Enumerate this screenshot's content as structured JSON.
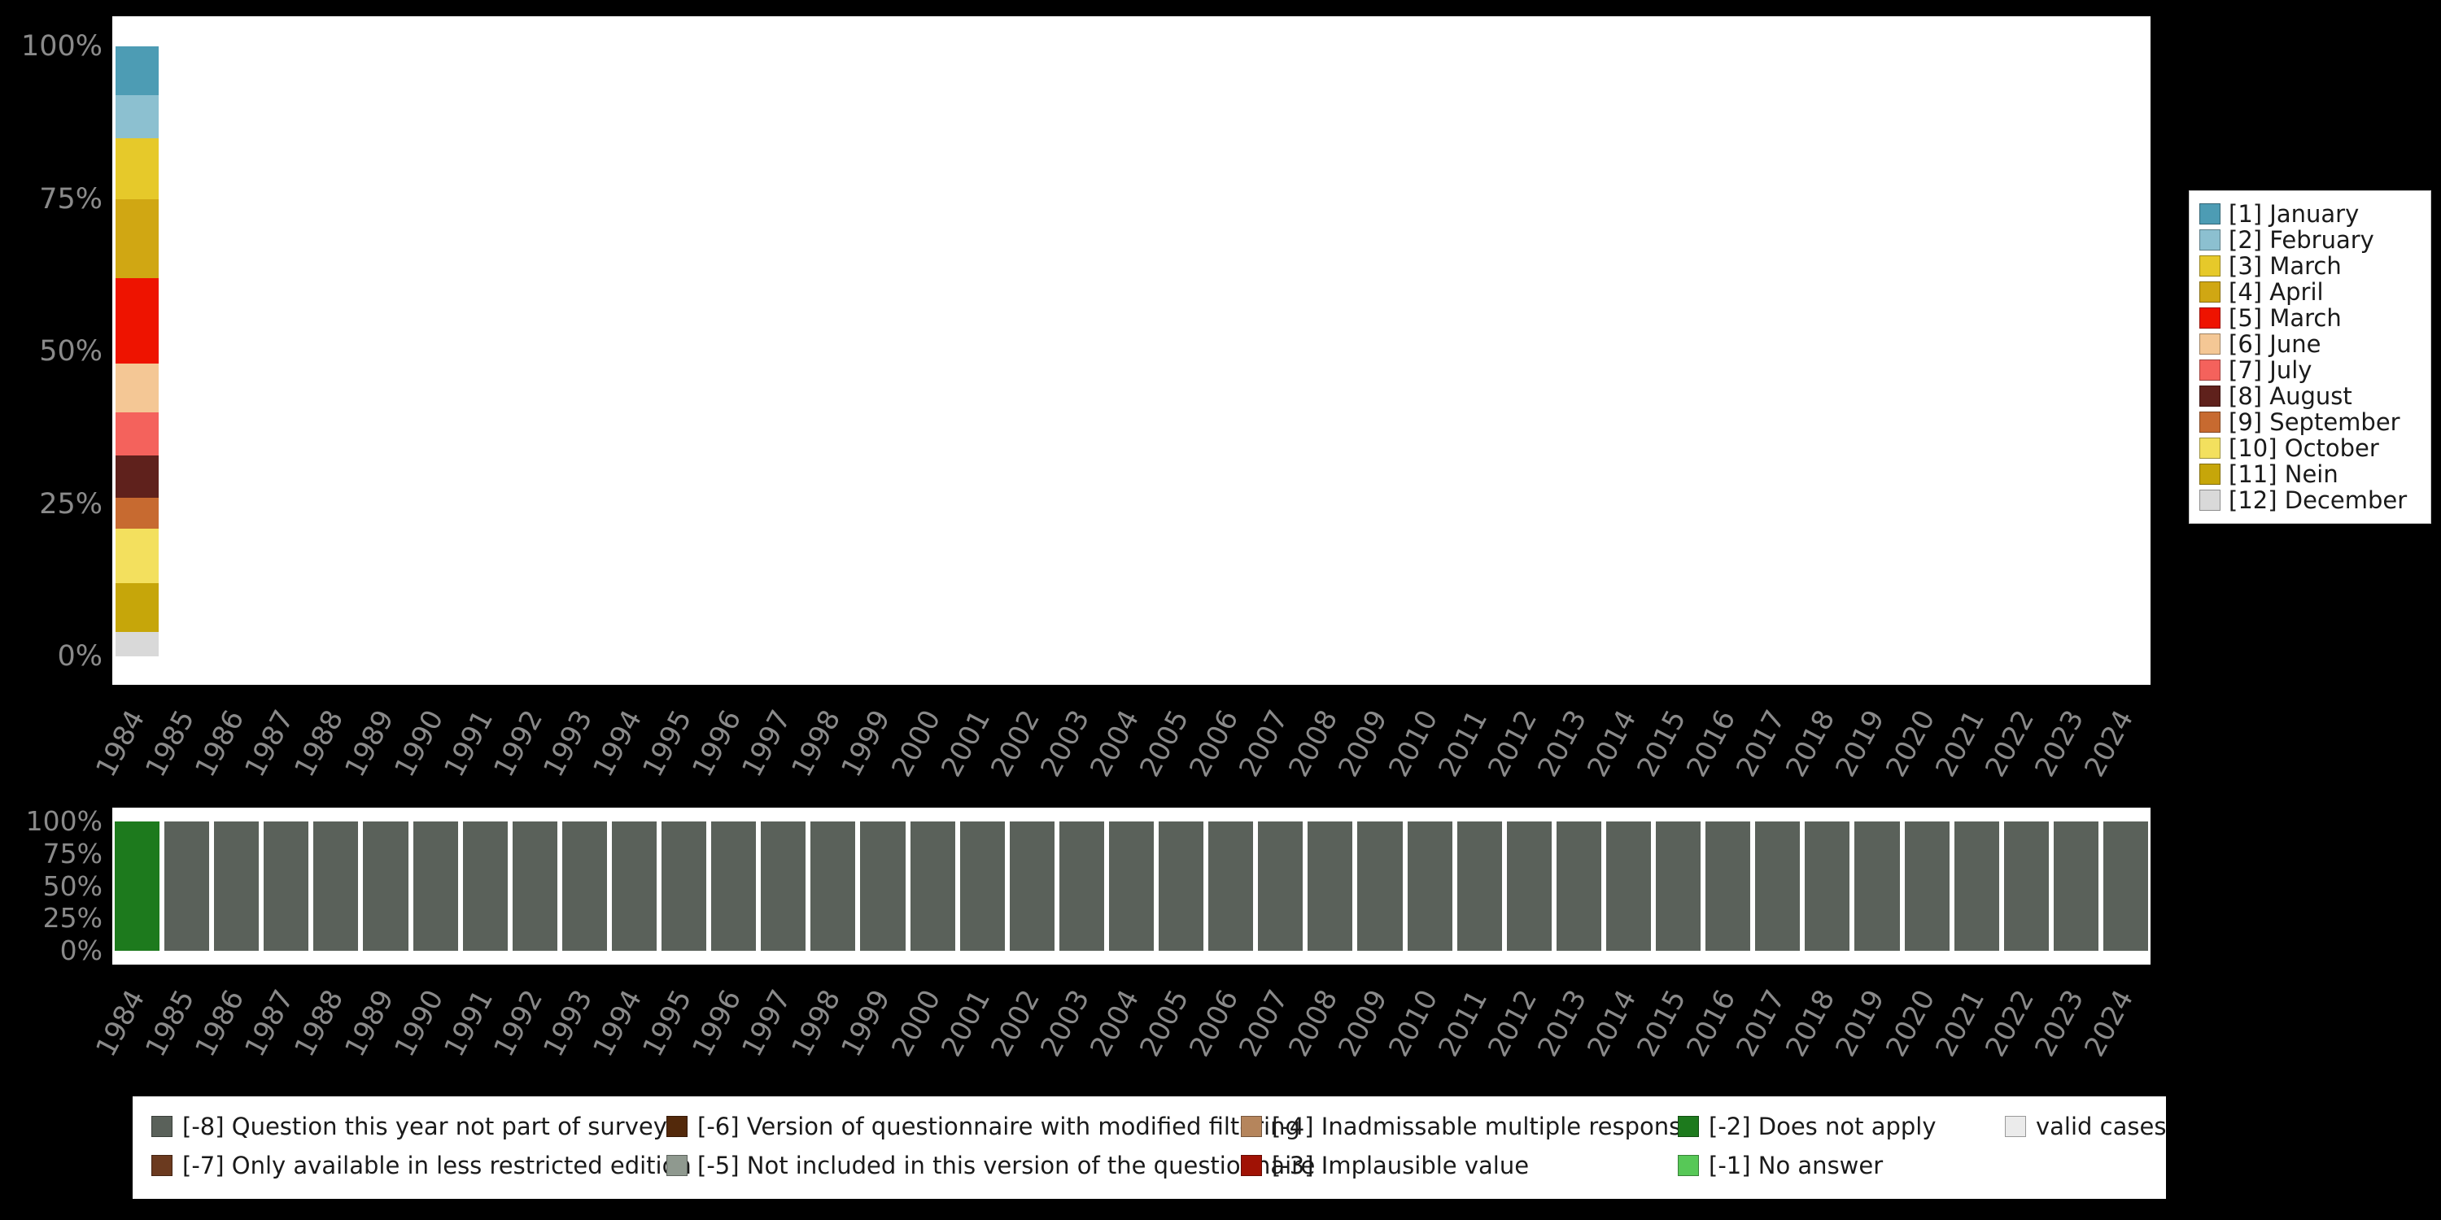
{
  "colors": {
    "background": "#000000",
    "plot_background": "#ffffff",
    "axis_text": "#8a8a8a",
    "legend_text": "#1a1a1a"
  },
  "years": [
    "1984",
    "1985",
    "1986",
    "1987",
    "1988",
    "1989",
    "1990",
    "1991",
    "1992",
    "1993",
    "1994",
    "1995",
    "1996",
    "1997",
    "1998",
    "1999",
    "2000",
    "2001",
    "2002",
    "2003",
    "2004",
    "2005",
    "2006",
    "2007",
    "2008",
    "2009",
    "2010",
    "2011",
    "2012",
    "2013",
    "2014",
    "2015",
    "2016",
    "2017",
    "2018",
    "2019",
    "2020",
    "2021",
    "2022",
    "2023",
    "2024"
  ],
  "top_chart": {
    "y_ticks": [
      "100%",
      "75%",
      "50%",
      "25%",
      "0%"
    ],
    "data_year": "1984",
    "segments": [
      {
        "label": "[1] January",
        "color": "#4d9cb4",
        "value": 8
      },
      {
        "label": "[2] February",
        "color": "#8cc0d0",
        "value": 7
      },
      {
        "label": "[3] March",
        "color": "#e6c92a",
        "value": 10
      },
      {
        "label": "[4] April",
        "color": "#d0a713",
        "value": 13
      },
      {
        "label": "[5] March",
        "color": "#ee1300",
        "value": 14
      },
      {
        "label": "[6] June",
        "color": "#f4c795",
        "value": 8
      },
      {
        "label": "[7] July",
        "color": "#f4625c",
        "value": 7
      },
      {
        "label": "[8] August",
        "color": "#5f211c",
        "value": 7
      },
      {
        "label": "[9] September",
        "color": "#c76a30",
        "value": 5
      },
      {
        "label": "[10] October",
        "color": "#f3e05e",
        "value": 9
      },
      {
        "label": "[11] Nein",
        "color": "#c6a60a",
        "value": 8
      },
      {
        "label": "[12] December",
        "color": "#d9d9d9",
        "value": 4
      }
    ]
  },
  "bottom_chart": {
    "y_ticks": [
      "100%",
      "75%",
      "50%",
      "25%",
      "0%"
    ],
    "highlight_year": "1984",
    "highlight_color": "#1d7a1d",
    "default_color": "#5a615a"
  },
  "missing_legend": {
    "rows": [
      [
        {
          "label": "[-8] Question this year not part of survey",
          "color": "#5a615a"
        },
        {
          "label": "[-6] Version of questionnaire with modified filtering",
          "color": "#53290b"
        },
        {
          "label": "[-4] Inadmissable multiple response",
          "color": "#b5855c"
        },
        {
          "label": "[-2] Does not apply",
          "color": "#1d7a1d"
        },
        {
          "label": "valid cases",
          "color": "#ebebeb"
        }
      ],
      [
        {
          "label": "[-7] Only available in less restricted edition",
          "color": "#6b3a1f"
        },
        {
          "label": "[-5] Not included in this version of the questionnaire",
          "color": "#8f998f"
        },
        {
          "label": "[-3] Implausible value",
          "color": "#a01205"
        },
        {
          "label": "[-1] No answer",
          "color": "#57c857"
        }
      ]
    ]
  },
  "chart_data": [
    {
      "type": "bar",
      "stacked": true,
      "unit": "percent",
      "title": "",
      "xlabel": "",
      "ylabel": "",
      "ylim": [
        0,
        100
      ],
      "y_tick_labels": [
        "100%",
        "75%",
        "50%",
        "25%",
        "0%"
      ],
      "grid": false,
      "legend_position": "right",
      "categories": [
        "1984",
        "1985",
        "1986",
        "1987",
        "1988",
        "1989",
        "1990",
        "1991",
        "1992",
        "1993",
        "1994",
        "1995",
        "1996",
        "1997",
        "1998",
        "1999",
        "2000",
        "2001",
        "2002",
        "2003",
        "2004",
        "2005",
        "2006",
        "2007",
        "2008",
        "2009",
        "2010",
        "2011",
        "2012",
        "2013",
        "2014",
        "2015",
        "2016",
        "2017",
        "2018",
        "2019",
        "2020",
        "2021",
        "2022",
        "2023",
        "2024"
      ],
      "note": "Percent-stacked distribution; only 1984 has a bar, all years 1985-2024 are empty (0%).",
      "series": [
        {
          "name": "[1] January",
          "color": "#4d9cb4",
          "values_pct": {
            "1984": 8
          }
        },
        {
          "name": "[2] February",
          "color": "#8cc0d0",
          "values_pct": {
            "1984": 7
          }
        },
        {
          "name": "[3] March",
          "color": "#e6c92a",
          "values_pct": {
            "1984": 10
          }
        },
        {
          "name": "[4] April",
          "color": "#d0a713",
          "values_pct": {
            "1984": 13
          }
        },
        {
          "name": "[5] March",
          "color": "#ee1300",
          "values_pct": {
            "1984": 14
          }
        },
        {
          "name": "[6] June",
          "color": "#f4c795",
          "values_pct": {
            "1984": 8
          }
        },
        {
          "name": "[7] July",
          "color": "#f4625c",
          "values_pct": {
            "1984": 7
          }
        },
        {
          "name": "[8] August",
          "color": "#5f211c",
          "values_pct": {
            "1984": 7
          }
        },
        {
          "name": "[9] September",
          "color": "#c76a30",
          "values_pct": {
            "1984": 5
          }
        },
        {
          "name": "[10] October",
          "color": "#f3e05e",
          "values_pct": {
            "1984": 9
          }
        },
        {
          "name": "[11] Nein",
          "color": "#c6a60a",
          "values_pct": {
            "1984": 8
          }
        },
        {
          "name": "[12] December",
          "color": "#d9d9d9",
          "values_pct": {
            "1984": 4
          }
        }
      ]
    },
    {
      "type": "bar",
      "stacked": true,
      "unit": "percent",
      "title": "",
      "xlabel": "",
      "ylabel": "",
      "ylim": [
        0,
        100
      ],
      "y_tick_labels": [
        "100%",
        "75%",
        "50%",
        "25%",
        "0%"
      ],
      "grid": false,
      "legend_position": "bottom",
      "categories": [
        "1984",
        "1985",
        "1986",
        "1987",
        "1988",
        "1989",
        "1990",
        "1991",
        "1992",
        "1993",
        "1994",
        "1995",
        "1996",
        "1997",
        "1998",
        "1999",
        "2000",
        "2001",
        "2002",
        "2003",
        "2004",
        "2005",
        "2006",
        "2007",
        "2008",
        "2009",
        "2010",
        "2011",
        "2012",
        "2013",
        "2014",
        "2015",
        "2016",
        "2017",
        "2018",
        "2019",
        "2020",
        "2021",
        "2022",
        "2023",
        "2024"
      ],
      "note": "Missing-values overview: 1984 is 100% '[-2] Does not apply' (green); every year 1985-2024 is 100% '[-8] Question this year not part of survey' (gray).",
      "series": [
        {
          "name": "[-2] Does not apply",
          "color": "#1d7a1d",
          "values_pct": {
            "1984": 100
          }
        },
        {
          "name": "[-8] Question this year not part of survey",
          "color": "#5a615a",
          "values_pct": {
            "1985_to_2024_each": 100
          }
        }
      ]
    }
  ]
}
